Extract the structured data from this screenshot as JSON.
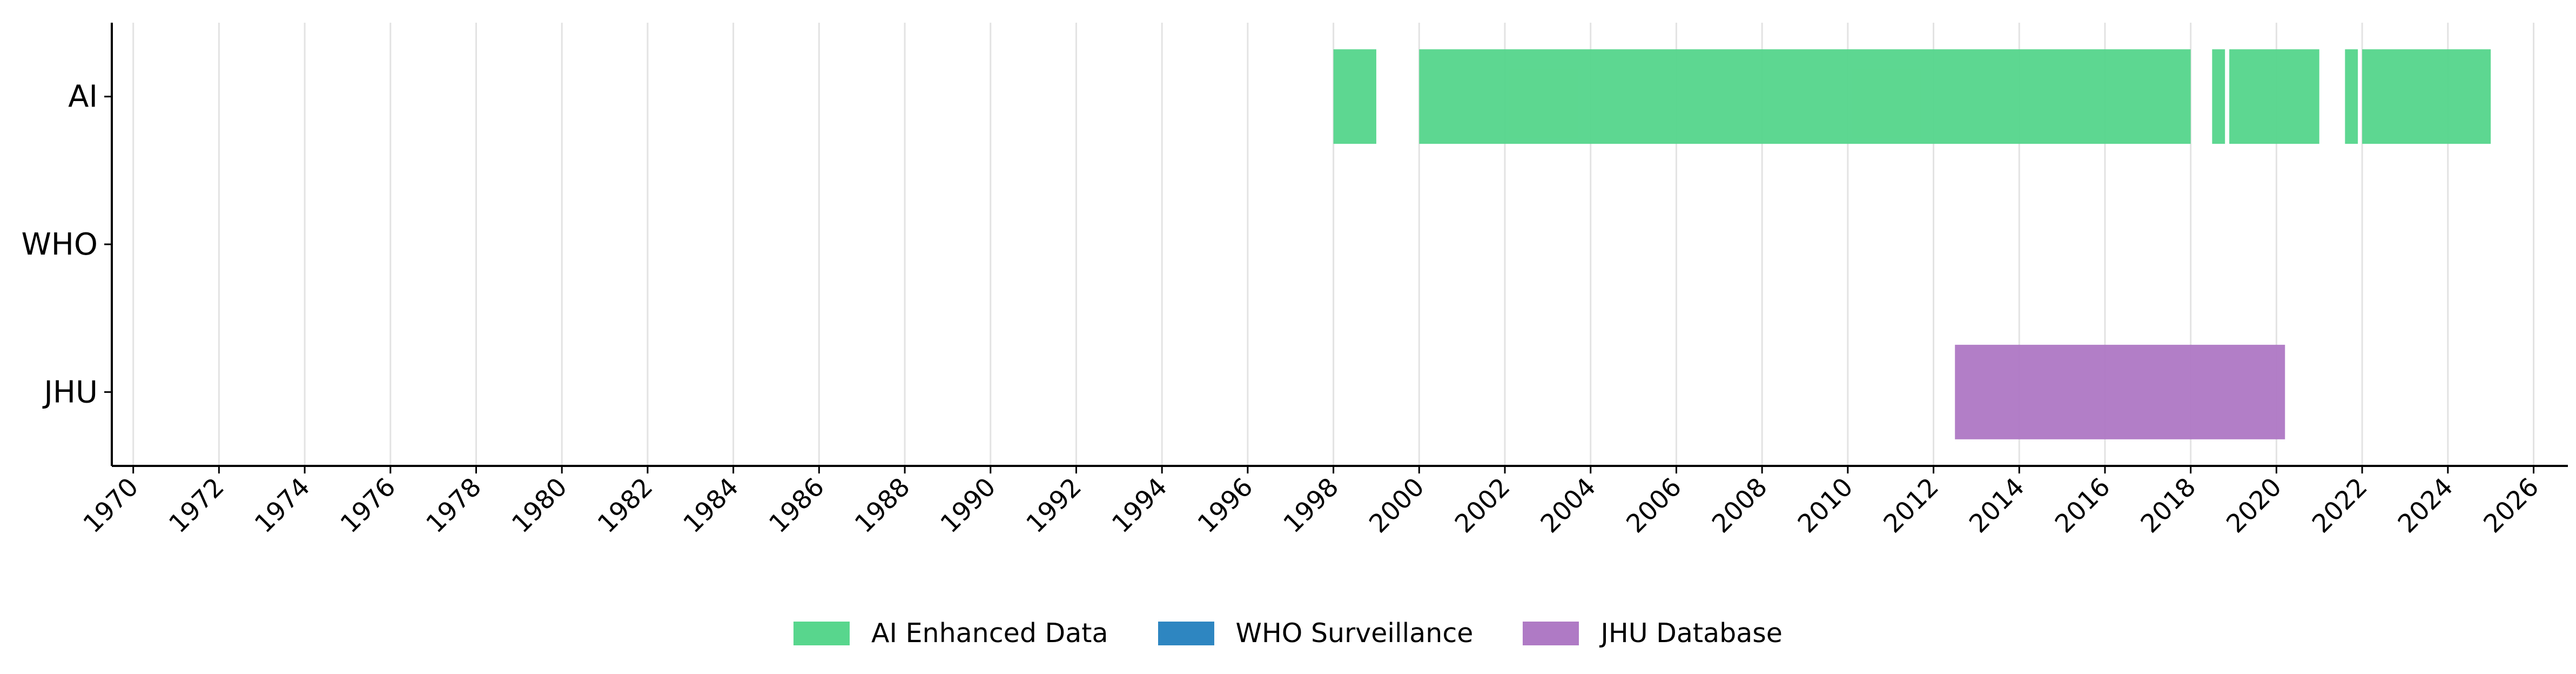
{
  "chart_data": {
    "type": "timeline",
    "title": "",
    "xlabel": "",
    "ylabel": "",
    "xlim": [
      1969.5,
      2026.8
    ],
    "x_ticks": [
      "1970",
      "1972",
      "1974",
      "1976",
      "1978",
      "1980",
      "1982",
      "1984",
      "1986",
      "1988",
      "1990",
      "1992",
      "1994",
      "1996",
      "1998",
      "2000",
      "2002",
      "2004",
      "2006",
      "2008",
      "2010",
      "2012",
      "2014",
      "2016",
      "2018",
      "2020",
      "2022",
      "2024",
      "2026"
    ],
    "categories": [
      "AI",
      "WHO",
      "JHU"
    ],
    "grid": "vertical",
    "legend_position": "bottom",
    "series": [
      {
        "name": "AI Enhanced Data",
        "row": "AI",
        "color": "#58d68d",
        "intervals": [
          [
            1998.0,
            1999.0
          ],
          [
            2000.0,
            2018.0
          ],
          [
            2018.5,
            2018.8
          ],
          [
            2018.9,
            2021.0
          ],
          [
            2021.6,
            2021.9
          ],
          [
            2022.0,
            2025.0
          ]
        ]
      },
      {
        "name": "WHO Surveillance",
        "row": "WHO",
        "color": "#2e86c1",
        "intervals": []
      },
      {
        "name": "JHU Database",
        "row": "JHU",
        "color": "#af7ac5",
        "intervals": [
          [
            2012.5,
            2020.2
          ]
        ]
      }
    ]
  }
}
